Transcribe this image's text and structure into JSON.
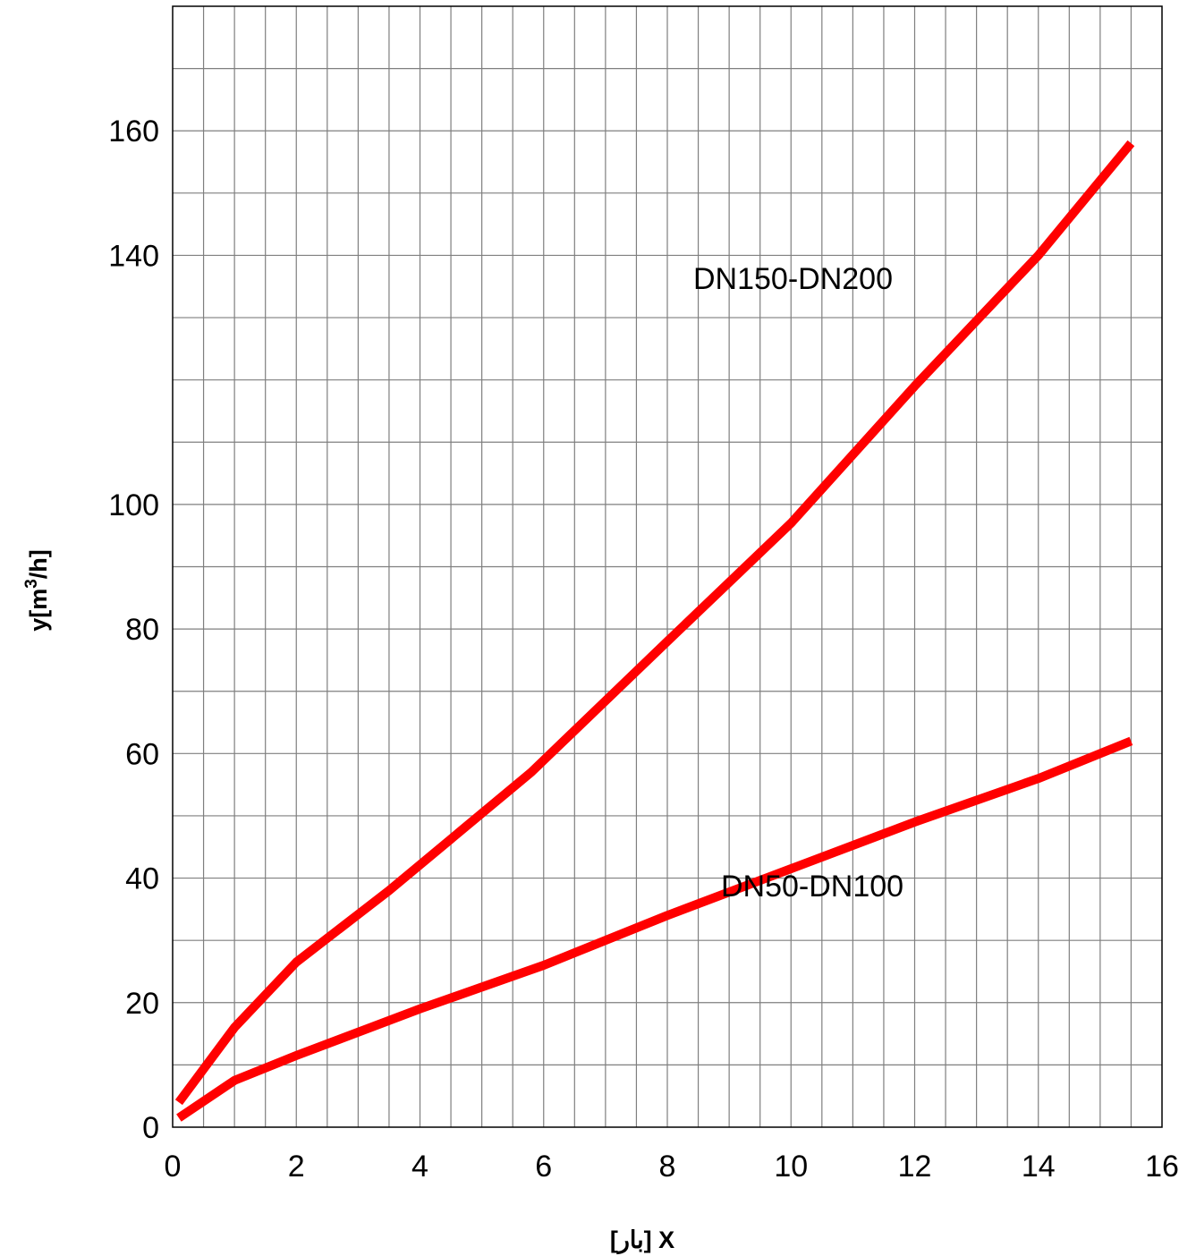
{
  "chart_data": {
    "type": "line",
    "title": "",
    "xlabel_latin": "X",
    "xlabel_unit": "[بار]",
    "ylabel_base": "y[m",
    "ylabel_sup": "3",
    "ylabel_tail": "/h]",
    "xlim": [
      0,
      16
    ],
    "ylim": [
      0,
      180
    ],
    "x_ticks": [
      0,
      2,
      4,
      6,
      8,
      10,
      12,
      14,
      16
    ],
    "y_ticks": [
      0,
      20,
      40,
      60,
      80,
      100,
      140,
      160
    ],
    "grid": true,
    "line_color": "#ff0000",
    "grid_color": "#7f7f7f",
    "series": [
      {
        "name": "DN150-DN200",
        "x": [
          0.1,
          1,
          2,
          3.5,
          5.8,
          8,
          10,
          12,
          14,
          15.5
        ],
        "y": [
          4,
          16,
          26.5,
          38,
          57,
          78,
          97,
          119,
          140,
          158
        ]
      },
      {
        "name": "DN50-DN100",
        "x": [
          0.1,
          1,
          2,
          4,
          6,
          8,
          10,
          12,
          14,
          15.5
        ],
        "y": [
          1.5,
          7.5,
          11.5,
          19,
          26,
          34,
          41.5,
          49,
          56,
          62
        ]
      }
    ]
  }
}
